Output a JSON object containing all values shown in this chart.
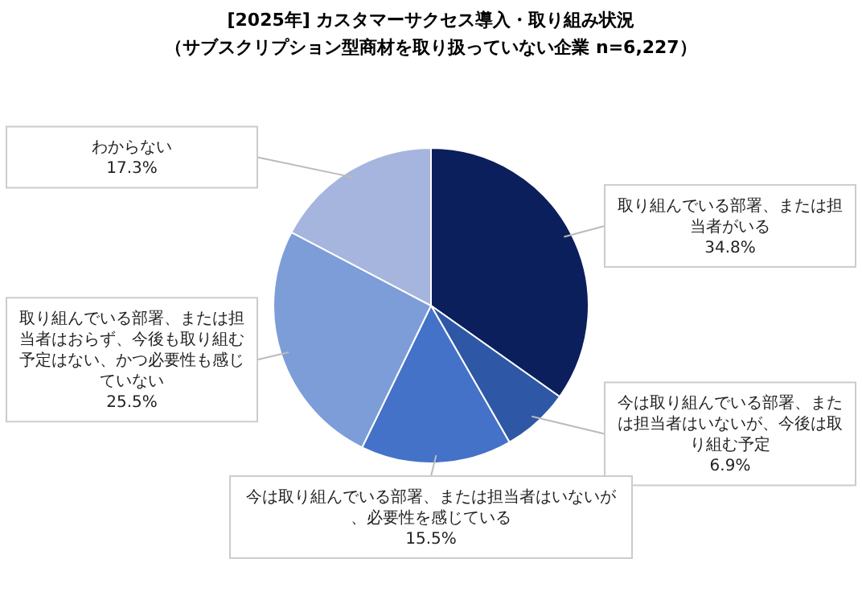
{
  "chart_data": {
    "type": "pie",
    "title": "[2025年] カスタマーサクセス導入・取り組み状況",
    "subtitle": "（サブスクリプション型商材を取り扱っていない企業 n=6,227）",
    "categories": [
      "取り組んでいる部署、または担当者がいる",
      "今は取り組んでいる部署、または担当者はいないが、今後は取り組む予定",
      "今は取り組んでいる部署、または担当者はいないが、必要性を感じている",
      "取り組んでいる部署、または担当者はおらず、今後も取り組む予定はない、かつ必要性も感じていない",
      "わからない"
    ],
    "values": [
      34.8,
      6.9,
      15.5,
      25.5,
      17.3
    ],
    "value_labels": [
      "34.8%",
      "6.9%",
      "15.5%",
      "25.5%",
      "17.3%"
    ],
    "colors": [
      "#0b1f5c",
      "#2e58a6",
      "#4472c8",
      "#7d9dd8",
      "#a6b5dd"
    ]
  }
}
